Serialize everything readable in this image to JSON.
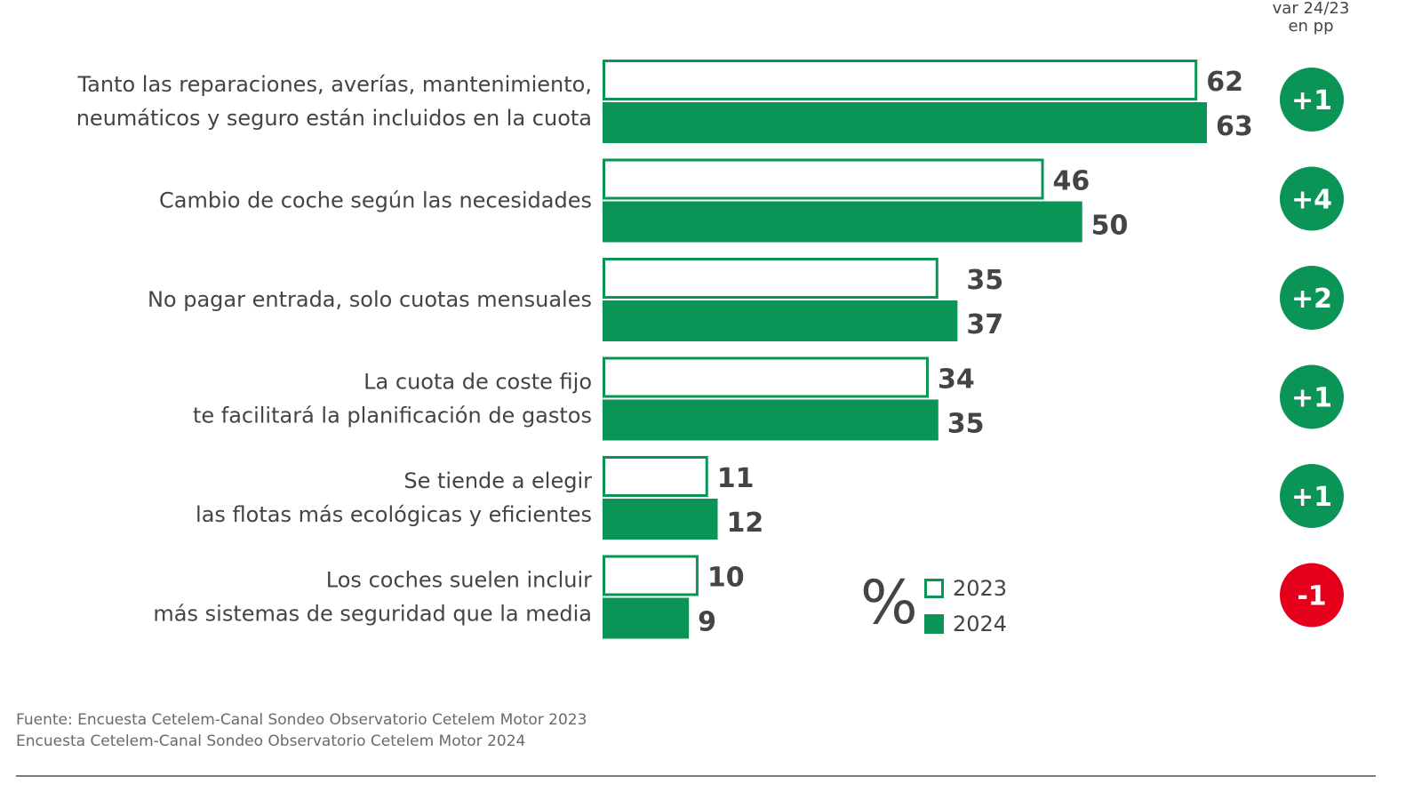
{
  "var_header": {
    "line1": "var 24/23",
    "line2": "en pp"
  },
  "legend": {
    "unit_symbol": "%",
    "items": [
      {
        "label": "2023",
        "fill": "#ffffff",
        "stroke": "#0a9456"
      },
      {
        "label": "2024",
        "fill": "#0a9456",
        "stroke": "#0a9456"
      }
    ]
  },
  "colors": {
    "green": "#0a9456",
    "red": "#e4001b",
    "text": "#444444"
  },
  "chart_data": {
    "type": "bar",
    "orientation": "horizontal",
    "categories": [
      [
        "Tanto las reparaciones, averías, mantenimiento,",
        "neumáticos y seguro están incluidos en la cuota"
      ],
      [
        "Cambio de coche según las necesidades"
      ],
      [
        "No pagar entrada, solo cuotas mensuales"
      ],
      [
        "La cuota de coste fijo",
        "te facilitará la planificación de gastos"
      ],
      [
        "Se tiende a elegir",
        "las flotas más ecológicas y eficientes"
      ],
      [
        "Los coches suelen incluir",
        "más sistemas de seguridad que la media"
      ]
    ],
    "series": [
      {
        "name": "2023",
        "values": [
          62,
          46,
          35,
          34,
          11,
          10
        ]
      },
      {
        "name": "2024",
        "values": [
          63,
          50,
          37,
          35,
          12,
          9
        ]
      }
    ],
    "variation": [
      "+1",
      "+4",
      "+2",
      "+1",
      "+1",
      "-1"
    ],
    "unit": "%",
    "xlim": [
      0,
      100
    ],
    "grid": false,
    "legend_position": "bottom-center"
  },
  "source": {
    "line1": "Fuente: Encuesta Cetelem-Canal Sondeo Observatorio Cetelem Motor 2023",
    "line2": "Encuesta Cetelem-Canal Sondeo Observatorio Cetelem Motor 2024"
  }
}
